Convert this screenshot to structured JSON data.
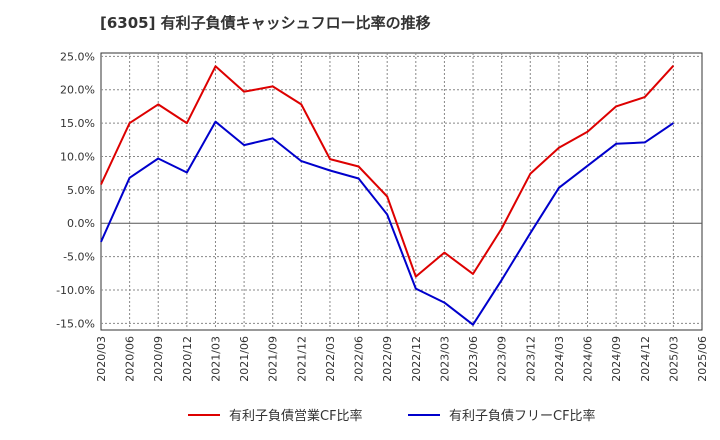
{
  "title": "[6305]  有利子負債キャッシュフロー比率の推移",
  "chart_data": {
    "type": "line",
    "title": "[6305]  有利子負債キャッシュフロー比率の推移",
    "xlabel": "",
    "ylabel": "",
    "ylim": [
      -16,
      25.5
    ],
    "yticks": [
      "25.0%",
      "20.0%",
      "15.0%",
      "10.0%",
      "5.0%",
      "0.0%",
      "-5.0%",
      "-10.0%",
      "-15.0%"
    ],
    "ytick_values": [
      25,
      20,
      15,
      10,
      5,
      0,
      -5,
      -10,
      -15
    ],
    "categories": [
      "2020/03",
      "2020/06",
      "2020/09",
      "2020/12",
      "2021/03",
      "2021/06",
      "2021/09",
      "2021/12",
      "2022/03",
      "2022/06",
      "2022/09",
      "2022/12",
      "2023/03",
      "2023/06",
      "2023/09",
      "2023/12",
      "2024/03",
      "2024/06",
      "2024/09",
      "2024/12",
      "2025/03",
      "2025/06"
    ],
    "grid": true,
    "legend_position": "bottom",
    "series": [
      {
        "name": "有利子負債営業CF比率",
        "color": "#dd0000",
        "values": [
          5.8,
          15.0,
          17.8,
          15.0,
          23.5,
          19.7,
          20.5,
          17.8,
          9.6,
          8.5,
          4.0,
          -8.0,
          -4.4,
          -7.6,
          -0.8,
          7.4,
          11.3,
          13.7,
          17.5,
          18.9,
          23.6,
          null
        ]
      },
      {
        "name": "有利子負債フリーCF比率",
        "color": "#0000cc",
        "values": [
          -2.8,
          6.8,
          9.7,
          7.6,
          15.2,
          11.7,
          12.7,
          9.3,
          7.9,
          6.7,
          1.3,
          -9.8,
          -11.9,
          -15.2,
          -8.5,
          -1.5,
          5.3,
          8.6,
          11.9,
          12.1,
          15.0,
          null
        ]
      }
    ]
  }
}
